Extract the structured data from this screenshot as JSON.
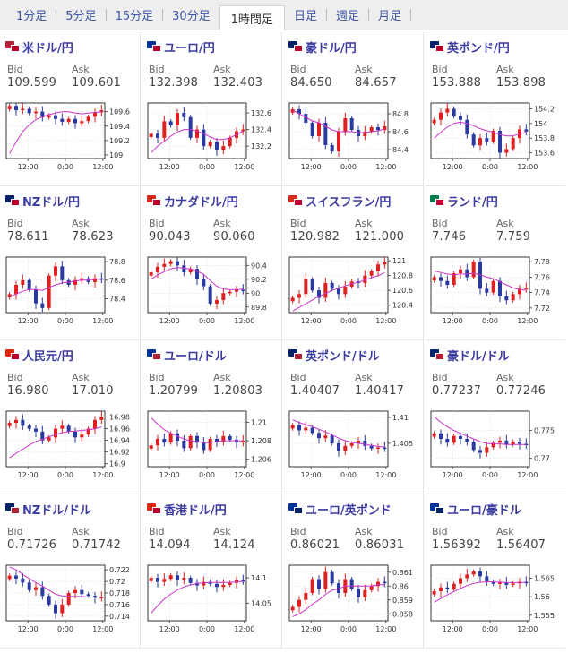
{
  "tabs": [
    {
      "label": "1分足",
      "active": false
    },
    {
      "label": "5分足",
      "active": false
    },
    {
      "label": "15分足",
      "active": false
    },
    {
      "label": "30分足",
      "active": false
    },
    {
      "label": "1時間足",
      "active": true
    },
    {
      "label": "日足",
      "active": false
    },
    {
      "label": "週足",
      "active": false
    },
    {
      "label": "月足",
      "active": false
    }
  ],
  "labels": {
    "bid": "Bid",
    "ask": "Ask"
  },
  "colors": {
    "up": "#e02020",
    "down": "#2a3aa0",
    "ma": "#cc33cc",
    "link": "#3a3aa0"
  },
  "pairs": [
    {
      "name": "米ドル/円",
      "flags": [
        "#b22234",
        "#bc002d"
      ],
      "bid": "109.599",
      "ask": "109.601",
      "chart_data": {
        "type": "candlestick",
        "y_ticks": [
          "109.6",
          "109.4",
          "109.2",
          "109"
        ],
        "y_tick_values": [
          109.6,
          109.4,
          109.2,
          109.0
        ],
        "ylim": [
          108.95,
          109.72
        ],
        "x_ticks": [
          "12:00",
          "0:00",
          "12:00"
        ],
        "close": [
          109.68,
          109.62,
          109.64,
          109.58,
          109.6,
          109.52,
          109.55,
          109.5,
          109.46,
          109.5,
          109.44,
          109.47,
          109.53,
          109.59,
          109.62
        ],
        "ma": [
          109.02,
          109.18,
          109.32,
          109.42,
          109.49,
          109.53,
          109.56,
          109.58,
          109.6,
          109.6,
          109.58,
          109.57,
          109.58,
          109.59,
          109.6
        ]
      }
    },
    {
      "name": "ユーロ/円",
      "flags": [
        "#003399",
        "#bc002d"
      ],
      "bid": "132.398",
      "ask": "132.403",
      "chart_data": {
        "type": "candlestick",
        "y_ticks": [
          "132.6",
          "132.4",
          "132.2"
        ],
        "y_tick_values": [
          132.6,
          132.4,
          132.2
        ],
        "ylim": [
          132.05,
          132.72
        ],
        "x_ticks": [
          "12:00",
          "0:00",
          "12:00"
        ],
        "close": [
          132.35,
          132.3,
          132.5,
          132.45,
          132.6,
          132.55,
          132.3,
          132.4,
          132.2,
          132.25,
          132.15,
          132.2,
          132.3,
          132.38,
          132.4
        ],
        "ma": [
          132.12,
          132.2,
          132.26,
          132.32,
          132.37,
          132.4,
          132.4,
          132.38,
          132.35,
          132.31,
          132.28,
          132.28,
          132.3,
          132.34,
          132.38
        ]
      }
    },
    {
      "name": "豪ドル/円",
      "flags": [
        "#012169",
        "#bc002d"
      ],
      "bid": "84.650",
      "ask": "84.657",
      "chart_data": {
        "type": "candlestick",
        "y_ticks": [
          "84.8",
          "84.6",
          "84.4"
        ],
        "y_tick_values": [
          84.8,
          84.6,
          84.4
        ],
        "ylim": [
          84.3,
          84.92
        ],
        "x_ticks": [
          "12:00",
          "0:00",
          "12:00"
        ],
        "close": [
          84.85,
          84.8,
          84.7,
          84.55,
          84.7,
          84.45,
          84.38,
          84.6,
          84.75,
          84.62,
          84.55,
          84.6,
          84.65,
          84.62,
          84.66
        ],
        "ma": [
          84.84,
          84.8,
          84.76,
          84.72,
          84.7,
          84.66,
          84.62,
          84.6,
          84.6,
          84.6,
          84.59,
          84.59,
          84.6,
          84.61,
          84.63
        ]
      }
    },
    {
      "name": "英ポンド/円",
      "flags": [
        "#012169",
        "#bc002d"
      ],
      "bid": "153.888",
      "ask": "153.898",
      "chart_data": {
        "type": "candlestick",
        "y_ticks": [
          "154.2",
          "154",
          "153.8",
          "153.6"
        ],
        "y_tick_values": [
          154.2,
          154.0,
          153.8,
          153.6
        ],
        "ylim": [
          153.52,
          154.28
        ],
        "x_ticks": [
          "12:00",
          "0:00",
          "12:00"
        ],
        "close": [
          154.05,
          154.15,
          154.2,
          154.1,
          154.05,
          153.85,
          153.7,
          153.8,
          153.75,
          153.9,
          153.6,
          153.65,
          153.8,
          153.92,
          153.89
        ],
        "ma": [
          153.8,
          153.88,
          153.95,
          154.0,
          154.02,
          154.0,
          153.97,
          153.93,
          153.9,
          153.88,
          153.85,
          153.83,
          153.83,
          153.86,
          153.88
        ]
      }
    },
    {
      "name": "NZドル/円",
      "flags": [
        "#012169",
        "#bc002d"
      ],
      "bid": "78.611",
      "ask": "78.623",
      "chart_data": {
        "type": "candlestick",
        "y_ticks": [
          "78.8",
          "78.6",
          "78.4"
        ],
        "y_tick_values": [
          78.8,
          78.6,
          78.4
        ],
        "ylim": [
          78.25,
          78.85
        ],
        "x_ticks": [
          "12:00",
          "0:00",
          "12:00"
        ],
        "close": [
          78.45,
          78.55,
          78.6,
          78.5,
          78.35,
          78.3,
          78.65,
          78.75,
          78.6,
          78.55,
          78.6,
          78.62,
          78.58,
          78.62,
          78.61
        ],
        "ma": [
          78.42,
          78.45,
          78.48,
          78.5,
          78.5,
          78.49,
          78.52,
          78.55,
          78.57,
          78.58,
          78.59,
          78.6,
          78.6,
          78.61,
          78.61
        ]
      }
    },
    {
      "name": "カナダドル/円",
      "flags": [
        "#d52b1e",
        "#bc002d"
      ],
      "bid": "90.043",
      "ask": "90.060",
      "chart_data": {
        "type": "candlestick",
        "y_ticks": [
          "90.4",
          "90.2",
          "90",
          "89.8"
        ],
        "y_tick_values": [
          90.4,
          90.2,
          90.0,
          89.8
        ],
        "ylim": [
          89.72,
          90.52
        ],
        "x_ticks": [
          "12:00",
          "0:00",
          "12:00"
        ],
        "close": [
          90.3,
          90.38,
          90.42,
          90.46,
          90.4,
          90.3,
          90.35,
          90.2,
          90.1,
          89.85,
          89.9,
          90.0,
          90.02,
          90.05,
          90.04
        ],
        "ma": [
          90.2,
          90.26,
          90.31,
          90.35,
          90.37,
          90.36,
          90.35,
          90.32,
          90.27,
          90.18,
          90.1,
          90.06,
          90.05,
          90.05,
          90.06
        ]
      }
    },
    {
      "name": "スイスフラン/円",
      "flags": [
        "#d52b1e",
        "#bc002d"
      ],
      "bid": "120.982",
      "ask": "121.000",
      "chart_data": {
        "type": "candlestick",
        "y_ticks": [
          "121",
          "120.8",
          "120.6",
          "120.4"
        ],
        "y_tick_values": [
          121.0,
          120.8,
          120.6,
          120.4
        ],
        "ylim": [
          120.3,
          121.05
        ],
        "x_ticks": [
          "12:00",
          "0:00",
          "12:00"
        ],
        "close": [
          120.5,
          120.55,
          120.75,
          120.6,
          120.5,
          120.7,
          120.62,
          120.55,
          120.65,
          120.72,
          120.7,
          120.8,
          120.86,
          120.95,
          120.98
        ],
        "ma": [
          120.32,
          120.37,
          120.42,
          120.47,
          120.52,
          120.56,
          120.6,
          120.63,
          120.66,
          120.69,
          120.71,
          120.74,
          120.77,
          120.8,
          120.84
        ]
      }
    },
    {
      "name": "ランド/円",
      "flags": [
        "#007a4d",
        "#bc002d"
      ],
      "bid": "7.746",
      "ask": "7.759",
      "chart_data": {
        "type": "candlestick",
        "y_ticks": [
          "7.78",
          "7.76",
          "7.74",
          "7.72"
        ],
        "y_tick_values": [
          7.78,
          7.76,
          7.74,
          7.72
        ],
        "ylim": [
          7.714,
          7.786
        ],
        "x_ticks": [
          "12:00",
          "0:00",
          "12:00"
        ],
        "close": [
          7.76,
          7.755,
          7.75,
          7.765,
          7.77,
          7.76,
          7.78,
          7.745,
          7.74,
          7.755,
          7.735,
          7.73,
          7.738,
          7.745,
          7.746
        ],
        "ma": [
          7.768,
          7.766,
          7.764,
          7.763,
          7.764,
          7.764,
          7.765,
          7.763,
          7.76,
          7.758,
          7.754,
          7.75,
          7.746,
          7.744,
          7.743
        ]
      }
    },
    {
      "name": "人民元/円",
      "flags": [
        "#de2910",
        "#bc002d"
      ],
      "bid": "16.980",
      "ask": "17.010",
      "chart_data": {
        "type": "candlestick",
        "y_ticks": [
          "16.98",
          "16.96",
          "16.94",
          "16.92",
          "16.9"
        ],
        "y_tick_values": [
          16.98,
          16.96,
          16.94,
          16.92,
          16.9
        ],
        "ylim": [
          16.895,
          16.99
        ],
        "x_ticks": [
          "12:00",
          "0:00",
          "12:00"
        ],
        "close": [
          16.97,
          16.975,
          16.965,
          16.96,
          16.955,
          16.94,
          16.945,
          16.96,
          16.965,
          16.955,
          16.945,
          16.95,
          16.96,
          16.975,
          16.98
        ],
        "ma": [
          16.91,
          16.918,
          16.925,
          16.932,
          16.938,
          16.942,
          16.946,
          16.95,
          16.953,
          16.955,
          16.956,
          16.957,
          16.958,
          16.96,
          16.963
        ]
      }
    },
    {
      "name": "ユーロ/ドル",
      "flags": [
        "#003399",
        "#b22234"
      ],
      "bid": "1.20799",
      "ask": "1.20803",
      "chart_data": {
        "type": "candlestick",
        "y_ticks": [
          "1.21",
          "1.208",
          "1.206"
        ],
        "y_tick_values": [
          1.21,
          1.208,
          1.206
        ],
        "ylim": [
          1.2052,
          1.2112
        ],
        "x_ticks": [
          "12:00",
          "0:00",
          "12:00"
        ],
        "close": [
          1.2075,
          1.2082,
          1.2078,
          1.2088,
          1.208,
          1.2072,
          1.2085,
          1.2078,
          1.207,
          1.2082,
          1.2079,
          1.2085,
          1.2081,
          1.2078,
          1.208
        ],
        "ma": [
          1.2105,
          1.2098,
          1.2092,
          1.2088,
          1.2085,
          1.2082,
          1.208,
          1.2079,
          1.2078,
          1.2078,
          1.2079,
          1.208,
          1.208,
          1.208,
          1.208
        ]
      }
    },
    {
      "name": "英ポンド/ドル",
      "flags": [
        "#012169",
        "#b22234"
      ],
      "bid": "1.40407",
      "ask": "1.40417",
      "chart_data": {
        "type": "candlestick",
        "y_ticks": [
          "1.41",
          "1.405"
        ],
        "y_tick_values": [
          1.41,
          1.405
        ],
        "ylim": [
          1.4005,
          1.4112
        ],
        "x_ticks": [
          "12:00",
          "0:00",
          "12:00"
        ],
        "close": [
          1.4085,
          1.4075,
          1.408,
          1.407,
          1.406,
          1.4065,
          1.405,
          1.4035,
          1.4045,
          1.405,
          1.4055,
          1.4045,
          1.404,
          1.4042,
          1.4041
        ],
        "ma": [
          1.4095,
          1.409,
          1.4086,
          1.4082,
          1.4077,
          1.4072,
          1.4066,
          1.406,
          1.4055,
          1.4052,
          1.405,
          1.4048,
          1.4046,
          1.4044,
          1.4043
        ]
      }
    },
    {
      "name": "豪ドル/ドル",
      "flags": [
        "#012169",
        "#b22234"
      ],
      "bid": "0.77237",
      "ask": "0.77246",
      "chart_data": {
        "type": "candlestick",
        "y_ticks": [
          "0.775",
          "0.77"
        ],
        "y_tick_values": [
          0.775,
          0.77
        ],
        "ylim": [
          0.7685,
          0.7785
        ],
        "x_ticks": [
          "12:00",
          "0:00",
          "12:00"
        ],
        "close": [
          0.7745,
          0.7735,
          0.7728,
          0.774,
          0.7735,
          0.773,
          0.7715,
          0.771,
          0.772,
          0.7728,
          0.7732,
          0.7725,
          0.773,
          0.7726,
          0.7724
        ],
        "ma": [
          0.7775,
          0.7765,
          0.7757,
          0.775,
          0.7745,
          0.774,
          0.7735,
          0.773,
          0.7727,
          0.7726,
          0.7726,
          0.7725,
          0.7725,
          0.7725,
          0.7725
        ]
      }
    },
    {
      "name": "NZドル/ドル",
      "flags": [
        "#012169",
        "#b22234"
      ],
      "bid": "0.71726",
      "ask": "0.71742",
      "chart_data": {
        "type": "candlestick",
        "y_ticks": [
          "0.722",
          "0.72",
          "0.718",
          "0.716",
          "0.714"
        ],
        "y_tick_values": [
          0.722,
          0.72,
          0.718,
          0.716,
          0.714
        ],
        "ylim": [
          0.7132,
          0.7228
        ],
        "x_ticks": [
          "12:00",
          "0:00",
          "12:00"
        ],
        "close": [
          0.721,
          0.7205,
          0.7198,
          0.7185,
          0.719,
          0.7175,
          0.716,
          0.7145,
          0.716,
          0.718,
          0.7185,
          0.7178,
          0.7175,
          0.7172,
          0.7173
        ],
        "ma": [
          0.7225,
          0.722,
          0.7212,
          0.7205,
          0.7198,
          0.7192,
          0.7185,
          0.7178,
          0.7175,
          0.7174,
          0.7174,
          0.7174,
          0.7173,
          0.7173,
          0.7173
        ]
      }
    },
    {
      "name": "香港ドル/円",
      "flags": [
        "#de2910",
        "#bc002d"
      ],
      "bid": "14.094",
      "ask": "14.124",
      "chart_data": {
        "type": "candlestick",
        "y_ticks": [
          "14.1",
          "14.05"
        ],
        "y_tick_values": [
          14.1,
          14.05
        ],
        "ylim": [
          14.015,
          14.125
        ],
        "x_ticks": [
          "12:00",
          "0:00",
          "12:00"
        ],
        "close": [
          14.1,
          14.092,
          14.098,
          14.105,
          14.095,
          14.1,
          14.09,
          14.085,
          14.092,
          14.088,
          14.082,
          14.086,
          14.09,
          14.095,
          14.094
        ],
        "ma": [
          14.03,
          14.045,
          14.058,
          14.068,
          14.076,
          14.082,
          14.086,
          14.089,
          14.09,
          14.091,
          14.091,
          14.091,
          14.091,
          14.092,
          14.093
        ]
      }
    },
    {
      "name": "ユーロ/英ポンド",
      "flags": [
        "#003399",
        "#012169"
      ],
      "bid": "0.86021",
      "ask": "0.86031",
      "chart_data": {
        "type": "candlestick",
        "y_ticks": [
          "0.861",
          "0.86",
          "0.859",
          "0.858"
        ],
        "y_tick_values": [
          0.861,
          0.86,
          0.859,
          0.858
        ],
        "ylim": [
          0.8575,
          0.8615
        ],
        "x_ticks": [
          "12:00",
          "0:00",
          "12:00"
        ],
        "close": [
          0.8585,
          0.859,
          0.8595,
          0.8605,
          0.8598,
          0.861,
          0.8602,
          0.8595,
          0.8605,
          0.8598,
          0.8592,
          0.8597,
          0.86,
          0.8603,
          0.8602
        ],
        "ma": [
          0.8578,
          0.858,
          0.8583,
          0.8587,
          0.859,
          0.8594,
          0.8597,
          0.8598,
          0.86,
          0.86,
          0.86,
          0.86,
          0.86,
          0.8601,
          0.8601
        ]
      }
    },
    {
      "name": "ユーロ/豪ドル",
      "flags": [
        "#003399",
        "#012169"
      ],
      "bid": "1.56392",
      "ask": "1.56407",
      "chart_data": {
        "type": "candlestick",
        "y_ticks": [
          "1.565",
          "1.56",
          "1.555"
        ],
        "y_tick_values": [
          1.565,
          1.56,
          1.555
        ],
        "ylim": [
          1.5535,
          1.5685
        ],
        "x_ticks": [
          "12:00",
          "0:00",
          "12:00"
        ],
        "close": [
          1.5615,
          1.5625,
          1.562,
          1.5635,
          1.565,
          1.566,
          1.5668,
          1.5655,
          1.564,
          1.5635,
          1.5638,
          1.5632,
          1.5636,
          1.564,
          1.5639
        ],
        "ma": [
          1.5585,
          1.5595,
          1.5605,
          1.5614,
          1.5622,
          1.563,
          1.5636,
          1.5639,
          1.564,
          1.564,
          1.5639,
          1.5638,
          1.5638,
          1.5638,
          1.5639
        ]
      }
    }
  ]
}
